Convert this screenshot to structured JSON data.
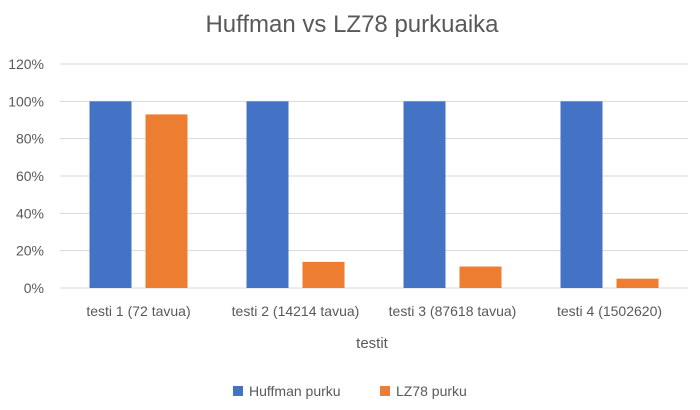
{
  "chart_data": {
    "type": "bar",
    "title": "Huffman vs LZ78 purkuaika",
    "xlabel": "testit",
    "ylabel": "",
    "categories": [
      "testi 1 (72 tavua)",
      "testi 2 (14214 tavua)",
      "testi 3 (87618 tavua)",
      "testi 4 (1502620)"
    ],
    "series": [
      {
        "name": "Huffman purku",
        "color": "#4472C4",
        "values": [
          100,
          100,
          100,
          100
        ]
      },
      {
        "name": "LZ78 purku",
        "color": "#ED7D31",
        "values": [
          93,
          14,
          11.5,
          5
        ]
      }
    ],
    "ylim": [
      0,
      120
    ],
    "yticks": [
      0,
      20,
      40,
      60,
      80,
      100,
      120
    ],
    "ytick_suffix": "%",
    "grid": true,
    "legend_position": "bottom"
  }
}
